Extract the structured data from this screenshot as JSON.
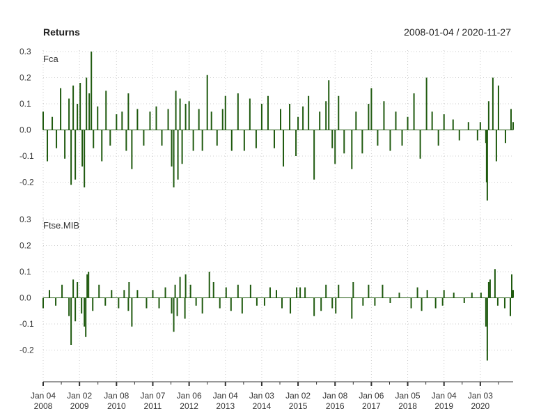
{
  "chart_data": {
    "type": "bar",
    "title": "Returns",
    "date_range": "2008-01-04 / 2020-11-27",
    "bar_color": "#1f5a0f",
    "grid": true,
    "grid_style": "dotted",
    "x_tick_labels": [
      {
        "label": [
          "Jan 04",
          "2008"
        ],
        "date": "2008-01-04"
      },
      {
        "label": [
          "Jan 02",
          "2009"
        ],
        "date": "2009-01-02"
      },
      {
        "label": [
          "Jan 08",
          "2010"
        ],
        "date": "2010-01-08"
      },
      {
        "label": [
          "Jan 07",
          "2011"
        ],
        "date": "2011-01-07"
      },
      {
        "label": [
          "Jan 06",
          "2012"
        ],
        "date": "2012-01-06"
      },
      {
        "label": [
          "Jan 04",
          "2013"
        ],
        "date": "2013-01-04"
      },
      {
        "label": [
          "Jan 03",
          "2014"
        ],
        "date": "2014-01-03"
      },
      {
        "label": [
          "Jan 02",
          "2015"
        ],
        "date": "2015-01-02"
      },
      {
        "label": [
          "Jan 08",
          "2016"
        ],
        "date": "2016-01-08"
      },
      {
        "label": [
          "Jan 06",
          "2017"
        ],
        "date": "2017-01-06"
      },
      {
        "label": [
          "Jan 05",
          "2018"
        ],
        "date": "2018-01-05"
      },
      {
        "label": [
          "Jan 04",
          "2019"
        ],
        "date": "2019-01-04"
      },
      {
        "label": [
          "Jan 03",
          "2020"
        ],
        "date": "2020-01-03"
      }
    ],
    "panels": [
      {
        "name": "Fca",
        "ylim": [
          -0.3,
          0.3
        ],
        "y_ticks": [
          0.3,
          0.2,
          0.1,
          0.0,
          -0.1,
          -0.2
        ],
        "y_tick_labels": [
          "0.3",
          "0.2",
          "0.1",
          "0.0",
          "-0.1",
          "-0.2"
        ],
        "series": [
          {
            "date": "2008-01-04",
            "value": 0.07
          },
          {
            "date": "2008-02-15",
            "value": -0.12
          },
          {
            "date": "2008-04-04",
            "value": 0.05
          },
          {
            "date": "2008-05-16",
            "value": -0.07
          },
          {
            "date": "2008-06-27",
            "value": 0.16
          },
          {
            "date": "2008-08-08",
            "value": -0.11
          },
          {
            "date": "2008-09-19",
            "value": 0.12
          },
          {
            "date": "2008-10-10",
            "value": -0.21
          },
          {
            "date": "2008-10-31",
            "value": 0.17
          },
          {
            "date": "2008-11-21",
            "value": -0.19
          },
          {
            "date": "2008-12-12",
            "value": 0.1
          },
          {
            "date": "2009-01-09",
            "value": 0.18
          },
          {
            "date": "2009-01-30",
            "value": -0.14
          },
          {
            "date": "2009-02-20",
            "value": -0.22
          },
          {
            "date": "2009-03-13",
            "value": 0.2
          },
          {
            "date": "2009-04-10",
            "value": 0.14
          },
          {
            "date": "2009-05-01",
            "value": 0.3
          },
          {
            "date": "2009-05-22",
            "value": -0.07
          },
          {
            "date": "2009-07-03",
            "value": 0.09
          },
          {
            "date": "2009-08-14",
            "value": -0.12
          },
          {
            "date": "2009-09-25",
            "value": 0.15
          },
          {
            "date": "2009-11-06",
            "value": -0.06
          },
          {
            "date": "2010-01-08",
            "value": 0.06
          },
          {
            "date": "2010-03-05",
            "value": 0.07
          },
          {
            "date": "2010-04-16",
            "value": -0.08
          },
          {
            "date": "2010-05-07",
            "value": 0.14
          },
          {
            "date": "2010-06-11",
            "value": -0.15
          },
          {
            "date": "2010-08-06",
            "value": 0.08
          },
          {
            "date": "2010-10-08",
            "value": -0.06
          },
          {
            "date": "2010-12-10",
            "value": 0.07
          },
          {
            "date": "2011-02-11",
            "value": 0.09
          },
          {
            "date": "2011-04-08",
            "value": -0.06
          },
          {
            "date": "2011-06-10",
            "value": 0.08
          },
          {
            "date": "2011-07-15",
            "value": -0.14
          },
          {
            "date": "2011-08-05",
            "value": -0.22
          },
          {
            "date": "2011-08-26",
            "value": 0.15
          },
          {
            "date": "2011-09-16",
            "value": -0.19
          },
          {
            "date": "2011-10-07",
            "value": 0.12
          },
          {
            "date": "2011-10-28",
            "value": -0.13
          },
          {
            "date": "2011-12-02",
            "value": 0.1
          },
          {
            "date": "2012-01-06",
            "value": 0.11
          },
          {
            "date": "2012-02-17",
            "value": -0.08
          },
          {
            "date": "2012-04-13",
            "value": 0.08
          },
          {
            "date": "2012-05-18",
            "value": -0.08
          },
          {
            "date": "2012-07-06",
            "value": 0.21
          },
          {
            "date": "2012-08-17",
            "value": 0.07
          },
          {
            "date": "2012-10-12",
            "value": -0.06
          },
          {
            "date": "2012-12-07",
            "value": 0.08
          },
          {
            "date": "2013-01-04",
            "value": 0.13
          },
          {
            "date": "2013-03-08",
            "value": -0.08
          },
          {
            "date": "2013-05-10",
            "value": 0.14
          },
          {
            "date": "2013-07-12",
            "value": -0.08
          },
          {
            "date": "2013-09-06",
            "value": 0.12
          },
          {
            "date": "2013-11-08",
            "value": -0.07
          },
          {
            "date": "2014-01-03",
            "value": 0.1
          },
          {
            "date": "2014-03-07",
            "value": 0.13
          },
          {
            "date": "2014-05-09",
            "value": -0.07
          },
          {
            "date": "2014-07-11",
            "value": 0.08
          },
          {
            "date": "2014-08-08",
            "value": -0.14
          },
          {
            "date": "2014-10-10",
            "value": 0.1
          },
          {
            "date": "2014-12-12",
            "value": -0.1
          },
          {
            "date": "2015-01-02",
            "value": 0.05
          },
          {
            "date": "2015-02-20",
            "value": 0.09
          },
          {
            "date": "2015-04-17",
            "value": 0.13
          },
          {
            "date": "2015-06-12",
            "value": -0.19
          },
          {
            "date": "2015-08-07",
            "value": 0.07
          },
          {
            "date": "2015-10-09",
            "value": 0.11
          },
          {
            "date": "2015-11-06",
            "value": 0.19
          },
          {
            "date": "2015-12-11",
            "value": -0.07
          },
          {
            "date": "2016-01-08",
            "value": -0.13
          },
          {
            "date": "2016-02-12",
            "value": 0.13
          },
          {
            "date": "2016-04-08",
            "value": -0.09
          },
          {
            "date": "2016-06-24",
            "value": -0.15
          },
          {
            "date": "2016-08-05",
            "value": 0.07
          },
          {
            "date": "2016-10-07",
            "value": -0.09
          },
          {
            "date": "2016-12-09",
            "value": 0.1
          },
          {
            "date": "2017-01-06",
            "value": 0.16
          },
          {
            "date": "2017-03-10",
            "value": -0.06
          },
          {
            "date": "2017-05-12",
            "value": 0.11
          },
          {
            "date": "2017-07-14",
            "value": -0.08
          },
          {
            "date": "2017-09-08",
            "value": 0.07
          },
          {
            "date": "2017-11-10",
            "value": -0.06
          },
          {
            "date": "2018-01-05",
            "value": 0.05
          },
          {
            "date": "2018-03-09",
            "value": 0.14
          },
          {
            "date": "2018-05-11",
            "value": -0.11
          },
          {
            "date": "2018-07-13",
            "value": 0.2
          },
          {
            "date": "2018-09-07",
            "value": 0.07
          },
          {
            "date": "2018-11-09",
            "value": -0.06
          },
          {
            "date": "2019-01-04",
            "value": 0.06
          },
          {
            "date": "2019-04-05",
            "value": 0.04
          },
          {
            "date": "2019-06-07",
            "value": -0.04
          },
          {
            "date": "2019-09-06",
            "value": 0.03
          },
          {
            "date": "2019-12-06",
            "value": -0.04
          },
          {
            "date": "2020-01-03",
            "value": 0.03
          },
          {
            "date": "2020-02-28",
            "value": -0.05
          },
          {
            "date": "2020-03-06",
            "value": -0.2
          },
          {
            "date": "2020-03-13",
            "value": -0.27
          },
          {
            "date": "2020-03-27",
            "value": 0.11
          },
          {
            "date": "2020-05-08",
            "value": 0.2
          },
          {
            "date": "2020-06-12",
            "value": -0.12
          },
          {
            "date": "2020-07-03",
            "value": 0.17
          },
          {
            "date": "2020-09-11",
            "value": -0.05
          },
          {
            "date": "2020-11-06",
            "value": 0.08
          },
          {
            "date": "2020-11-27",
            "value": 0.03
          }
        ]
      },
      {
        "name": "Ftse.MIB",
        "ylim": [
          -0.3,
          0.3
        ],
        "y_ticks": [
          0.3,
          0.2,
          0.1,
          0.0,
          -0.1,
          -0.2
        ],
        "y_tick_labels": [
          "0.3",
          "0.2",
          "0.1",
          "0.0",
          "-0.1",
          "-0.2"
        ],
        "series": [
          {
            "date": "2008-01-04",
            "value": -0.04
          },
          {
            "date": "2008-03-07",
            "value": 0.03
          },
          {
            "date": "2008-05-09",
            "value": -0.03
          },
          {
            "date": "2008-07-11",
            "value": 0.05
          },
          {
            "date": "2008-09-19",
            "value": -0.07
          },
          {
            "date": "2008-10-10",
            "value": -0.18
          },
          {
            "date": "2008-10-31",
            "value": 0.07
          },
          {
            "date": "2008-11-21",
            "value": -0.09
          },
          {
            "date": "2008-12-12",
            "value": 0.06
          },
          {
            "date": "2009-01-23",
            "value": -0.06
          },
          {
            "date": "2009-02-20",
            "value": -0.11
          },
          {
            "date": "2009-03-06",
            "value": -0.15
          },
          {
            "date": "2009-03-20",
            "value": 0.09
          },
          {
            "date": "2009-04-03",
            "value": 0.1
          },
          {
            "date": "2009-05-15",
            "value": -0.05
          },
          {
            "date": "2009-07-17",
            "value": 0.05
          },
          {
            "date": "2009-09-18",
            "value": -0.03
          },
          {
            "date": "2009-11-20",
            "value": 0.03
          },
          {
            "date": "2010-01-29",
            "value": -0.04
          },
          {
            "date": "2010-03-26",
            "value": 0.03
          },
          {
            "date": "2010-05-07",
            "value": -0.05
          },
          {
            "date": "2010-05-14",
            "value": 0.06
          },
          {
            "date": "2010-06-11",
            "value": -0.11
          },
          {
            "date": "2010-08-06",
            "value": 0.03
          },
          {
            "date": "2010-11-05",
            "value": -0.04
          },
          {
            "date": "2011-01-07",
            "value": 0.03
          },
          {
            "date": "2011-03-11",
            "value": -0.04
          },
          {
            "date": "2011-05-13",
            "value": 0.04
          },
          {
            "date": "2011-07-15",
            "value": -0.06
          },
          {
            "date": "2011-08-05",
            "value": -0.13
          },
          {
            "date": "2011-08-19",
            "value": 0.05
          },
          {
            "date": "2011-09-09",
            "value": -0.07
          },
          {
            "date": "2011-10-07",
            "value": 0.08
          },
          {
            "date": "2011-11-25",
            "value": -0.08
          },
          {
            "date": "2011-12-02",
            "value": 0.09
          },
          {
            "date": "2012-01-20",
            "value": 0.05
          },
          {
            "date": "2012-03-16",
            "value": -0.03
          },
          {
            "date": "2012-05-18",
            "value": -0.06
          },
          {
            "date": "2012-07-27",
            "value": 0.1
          },
          {
            "date": "2012-09-07",
            "value": 0.06
          },
          {
            "date": "2012-11-09",
            "value": -0.04
          },
          {
            "date": "2013-01-11",
            "value": 0.04
          },
          {
            "date": "2013-03-01",
            "value": -0.05
          },
          {
            "date": "2013-05-10",
            "value": 0.05
          },
          {
            "date": "2013-06-21",
            "value": -0.06
          },
          {
            "date": "2013-09-13",
            "value": 0.05
          },
          {
            "date": "2013-11-15",
            "value": -0.03
          },
          {
            "date": "2014-01-31",
            "value": -0.03
          },
          {
            "date": "2014-03-28",
            "value": 0.04
          },
          {
            "date": "2014-05-30",
            "value": 0.03
          },
          {
            "date": "2014-07-25",
            "value": -0.04
          },
          {
            "date": "2014-10-17",
            "value": -0.06
          },
          {
            "date": "2014-12-19",
            "value": 0.04
          },
          {
            "date": "2015-01-23",
            "value": 0.04
          },
          {
            "date": "2015-03-13",
            "value": 0.04
          },
          {
            "date": "2015-06-12",
            "value": -0.07
          },
          {
            "date": "2015-08-21",
            "value": -0.05
          },
          {
            "date": "2015-10-09",
            "value": 0.05
          },
          {
            "date": "2015-12-11",
            "value": -0.04
          },
          {
            "date": "2016-01-15",
            "value": -0.06
          },
          {
            "date": "2016-02-12",
            "value": 0.05
          },
          {
            "date": "2016-06-24",
            "value": -0.08
          },
          {
            "date": "2016-07-08",
            "value": 0.06
          },
          {
            "date": "2016-10-14",
            "value": -0.03
          },
          {
            "date": "2016-12-09",
            "value": 0.05
          },
          {
            "date": "2017-02-10",
            "value": -0.03
          },
          {
            "date": "2017-04-28",
            "value": 0.05
          },
          {
            "date": "2017-07-14",
            "value": -0.02
          },
          {
            "date": "2017-10-13",
            "value": 0.02
          },
          {
            "date": "2018-02-09",
            "value": -0.04
          },
          {
            "date": "2018-04-13",
            "value": 0.04
          },
          {
            "date": "2018-05-25",
            "value": -0.05
          },
          {
            "date": "2018-07-20",
            "value": 0.03
          },
          {
            "date": "2018-10-12",
            "value": -0.04
          },
          {
            "date": "2018-12-21",
            "value": -0.03
          },
          {
            "date": "2019-01-04",
            "value": 0.03
          },
          {
            "date": "2019-04-12",
            "value": 0.02
          },
          {
            "date": "2019-07-26",
            "value": -0.02
          },
          {
            "date": "2019-10-11",
            "value": 0.02
          },
          {
            "date": "2020-01-10",
            "value": 0.02
          },
          {
            "date": "2020-02-28",
            "value": -0.11
          },
          {
            "date": "2020-03-13",
            "value": -0.24
          },
          {
            "date": "2020-03-27",
            "value": 0.06
          },
          {
            "date": "2020-04-10",
            "value": 0.07
          },
          {
            "date": "2020-05-29",
            "value": 0.11
          },
          {
            "date": "2020-06-26",
            "value": -0.03
          },
          {
            "date": "2020-09-04",
            "value": -0.04
          },
          {
            "date": "2020-10-30",
            "value": -0.07
          },
          {
            "date": "2020-11-13",
            "value": 0.09
          },
          {
            "date": "2020-11-27",
            "value": 0.03
          }
        ]
      }
    ]
  }
}
